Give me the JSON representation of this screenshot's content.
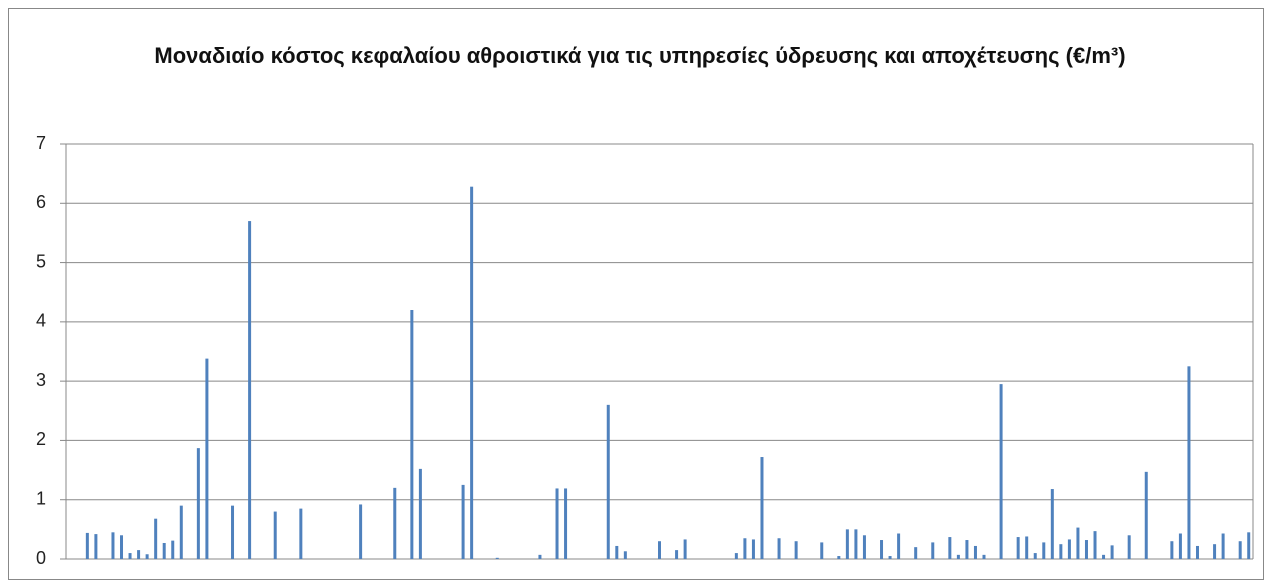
{
  "chart_data": {
    "type": "bar",
    "title": "Μοναδιαίο  κόστος κεφαλαίου αθροιστικά για τις υπηρεσίες ύδρευσης και αποχέτευσης (€/m³)",
    "categories": [
      null,
      null,
      null,
      null,
      null,
      null,
      null,
      null,
      null,
      null,
      null,
      null,
      null,
      null,
      null,
      null,
      null,
      null,
      null,
      null,
      null,
      null,
      null,
      null,
      null,
      null,
      null,
      null,
      null,
      null,
      null,
      null,
      null,
      null,
      null,
      null,
      null,
      null,
      null,
      null,
      null,
      null,
      null,
      null,
      null,
      null,
      null,
      null,
      null,
      null,
      null,
      null,
      null,
      null,
      null,
      null,
      null,
      null,
      null,
      null,
      null,
      null,
      null,
      null,
      null,
      null,
      null,
      null,
      null,
      null,
      null,
      null,
      null,
      null,
      null,
      null,
      null,
      null,
      null,
      null,
      null,
      null,
      null,
      null,
      null,
      null,
      null,
      null,
      null,
      null,
      null,
      null,
      null,
      null,
      null,
      null,
      null,
      null,
      null,
      null,
      null,
      null,
      null,
      null,
      null,
      null,
      null,
      null,
      null,
      null,
      null,
      null,
      null,
      null,
      null,
      null,
      null,
      null,
      null,
      null,
      null,
      null,
      null,
      null,
      null,
      null,
      null,
      null,
      null,
      null,
      null,
      null,
      null,
      null,
      null,
      null,
      null,
      null,
      null
    ],
    "values": [
      0,
      0,
      0.44,
      0.42,
      0,
      0.45,
      0.4,
      0.1,
      0.15,
      0.08,
      0.68,
      0.27,
      0.31,
      0.9,
      0,
      1.87,
      3.38,
      0,
      0,
      0.9,
      0,
      5.7,
      0,
      0,
      0.8,
      0,
      0,
      0.85,
      0,
      0,
      0,
      0,
      0,
      0,
      0.92,
      0,
      0,
      0,
      1.2,
      0,
      4.2,
      1.52,
      0,
      0,
      0,
      0,
      1.25,
      6.28,
      0,
      0,
      0.02,
      0,
      0,
      0,
      0,
      0.07,
      0,
      1.19,
      1.19,
      0,
      0,
      0,
      0,
      2.6,
      0.22,
      0.13,
      0,
      0,
      0,
      0.3,
      0,
      0.15,
      0.33,
      0,
      0,
      0,
      0,
      0,
      0.1,
      0.35,
      0.33,
      1.72,
      0,
      0.35,
      0,
      0.3,
      0,
      0,
      0.28,
      0,
      0.05,
      0.5,
      0.5,
      0.4,
      0,
      0.32,
      0.05,
      0.43,
      0,
      0.2,
      0,
      0.28,
      0,
      0.37,
      0.07,
      0.32,
      0.22,
      0.07,
      0,
      2.95,
      0,
      0.37,
      0.38,
      0.1,
      0.28,
      1.18,
      0.25,
      0.33,
      0.53,
      0.32,
      0.47,
      0.07,
      0.23,
      0,
      0.4,
      0,
      1.47,
      0,
      0,
      0.3,
      0.43,
      3.25,
      0.22,
      0,
      0.25,
      0.43,
      0,
      0.3,
      0.45
    ],
    "color": "#4f81bd",
    "ylim": [
      0,
      7
    ],
    "yticks": [
      0,
      1,
      2,
      3,
      4,
      5,
      6,
      7
    ],
    "grid": true
  }
}
